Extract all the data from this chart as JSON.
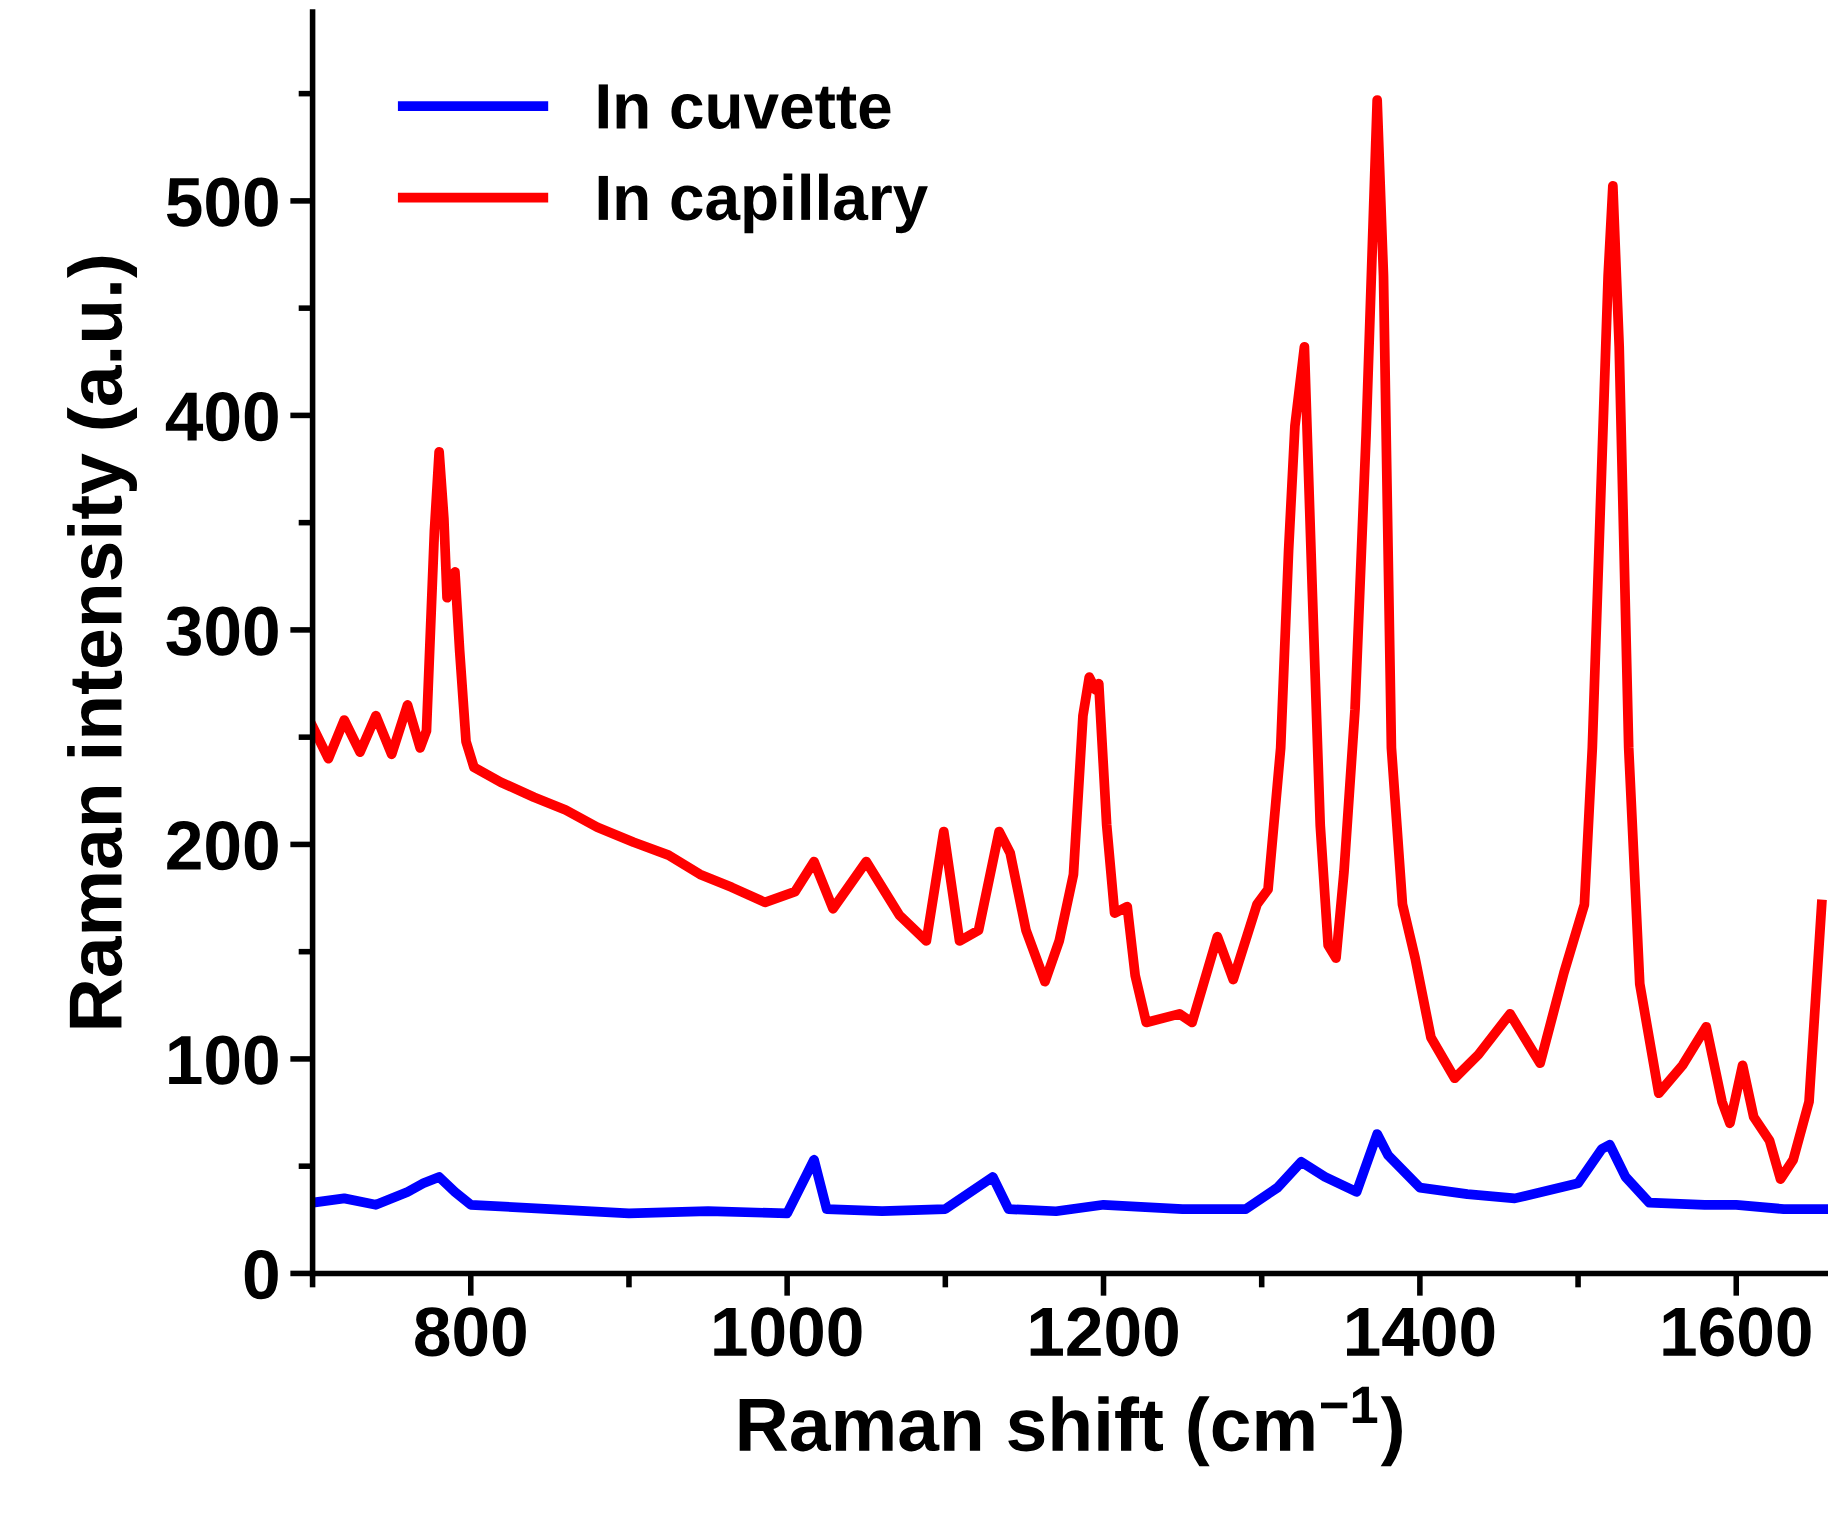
{
  "chart_data": {
    "type": "line",
    "xlabel": "Raman shift (cm$^{−1}$)",
    "ylabel": "Raman intensity (a.u.)",
    "xlim": [
      700,
      1658
    ],
    "ylim": [
      0,
      588
    ],
    "xticks": [
      {
        "value": 700,
        "label": null
      },
      800,
      {
        "value": 900,
        "label": null
      },
      1000,
      {
        "value": 1100,
        "label": null
      },
      1200,
      {
        "value": 1300,
        "label": null
      },
      1400,
      {
        "value": 1500,
        "label": null
      },
      1600
    ],
    "yticks": [
      0,
      {
        "value": 50,
        "label": null
      },
      100,
      {
        "value": 150,
        "label": null
      },
      200,
      {
        "value": 250,
        "label": null
      },
      300,
      {
        "value": 350,
        "label": null
      },
      400,
      {
        "value": 450,
        "label": null
      },
      500,
      {
        "value": 550,
        "label": null
      }
    ],
    "grid": false,
    "legend": "top left",
    "marker": "none",
    "line_style": "solid",
    "series": [
      {
        "name": "In cuvette",
        "color": "#0000ff",
        "x": [
          700,
          720,
          740,
          760,
          770,
          780,
          790,
          800,
          850,
          900,
          950,
          1000,
          1017,
          1025,
          1060,
          1100,
          1130,
          1140,
          1170,
          1200,
          1250,
          1290,
          1310,
          1325,
          1340,
          1360,
          1373,
          1380,
          1400,
          1430,
          1460,
          1500,
          1515,
          1520,
          1530,
          1545,
          1580,
          1600,
          1630,
          1655
        ],
        "values": [
          33,
          35,
          32,
          38,
          42,
          45,
          38,
          32,
          30,
          28,
          29,
          28,
          53,
          30,
          29,
          30,
          45,
          30,
          29,
          32,
          30,
          30,
          40,
          52,
          45,
          38,
          65,
          55,
          40,
          37,
          35,
          42,
          58,
          60,
          45,
          33,
          32,
          32,
          30,
          30
        ]
      },
      {
        "name": "In capillary",
        "color": "#ff0000",
        "x": [
          700,
          710,
          720,
          730,
          740,
          750,
          760,
          768,
          772,
          777,
          780,
          783,
          785,
          790,
          793,
          797,
          802,
          819,
          840,
          860,
          880,
          903,
          925,
          945,
          965,
          986,
          1005,
          1017,
          1029,
          1050,
          1071,
          1088,
          1099,
          1109,
          1121,
          1134,
          1141,
          1151,
          1163,
          1172,
          1181,
          1187,
          1191,
          1195,
          1197,
          1202,
          1207,
          1215,
          1220,
          1227,
          1248,
          1256,
          1272,
          1282,
          1297,
          1304,
          1312,
          1317,
          1321,
          1327,
          1332,
          1337,
          1342,
          1347,
          1352,
          1359,
          1366,
          1373,
          1377,
          1382,
          1389,
          1397,
          1407,
          1422,
          1437,
          1457,
          1476,
          1491,
          1504,
          1509,
          1514,
          1519,
          1522,
          1526,
          1532,
          1539,
          1551,
          1566,
          1581,
          1591,
          1596,
          1604,
          1611,
          1621,
          1628,
          1636,
          1646,
          1654
        ],
        "values": [
          255,
          240,
          258,
          243,
          260,
          242,
          265,
          245,
          253,
          346,
          383,
          352,
          315,
          327,
          290,
          248,
          236,
          229,
          222,
          216,
          208,
          201,
          195,
          186,
          180,
          173,
          178,
          192,
          170,
          192,
          167,
          155,
          206,
          155,
          160,
          206,
          196,
          160,
          136,
          155,
          186,
          260,
          278,
          272,
          275,
          209,
          168,
          171,
          139,
          117,
          121,
          117,
          157,
          137,
          172,
          179,
          245,
          337,
          395,
          432,
          318,
          209,
          153,
          147,
          187,
          263,
          391,
          547,
          465,
          245,
          172,
          147,
          110,
          91,
          102,
          121,
          98,
          140,
          172,
          245,
          355,
          465,
          507,
          432,
          245,
          135,
          84,
          97,
          115,
          80,
          70,
          97,
          73,
          62,
          44,
          53,
          80,
          172
        ]
      }
    ]
  }
}
